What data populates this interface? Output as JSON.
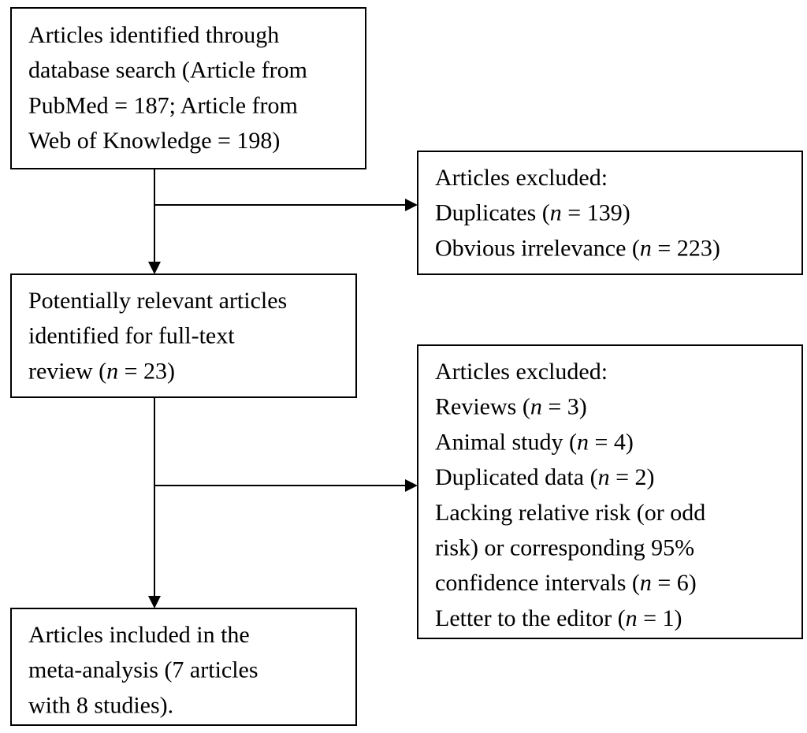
{
  "nodes": [
    {
      "lines": [
        [
          "Articles identified through"
        ],
        [
          "database search (Article from"
        ],
        [
          "PubMed = 187; Article from"
        ],
        [
          "Web of Knowledge = 198)"
        ]
      ]
    },
    {
      "lines": [
        [
          "Articles excluded:"
        ],
        [
          "Duplicates (",
          "n",
          " = 139)"
        ],
        [
          "Obvious irrelevance (",
          "n",
          " = 223)"
        ]
      ]
    },
    {
      "lines": [
        [
          "Potentially relevant articles"
        ],
        [
          "identified for full-text"
        ],
        [
          "review (",
          "n",
          " = 23)"
        ]
      ]
    },
    {
      "lines": [
        [
          "Articles excluded:"
        ],
        [
          "Reviews (",
          "n",
          " = 3)"
        ],
        [
          "Animal study (",
          "n",
          " = 4)"
        ],
        [
          "Duplicated data (",
          "n",
          " = 2)"
        ],
        [
          "Lacking relative risk (or odd"
        ],
        [
          "risk) or corresponding 95%"
        ],
        [
          "confidence intervals (",
          "n",
          " = 6)"
        ],
        [
          "Letter to the editor (",
          "n",
          " = 1)"
        ]
      ]
    },
    {
      "lines": [
        [
          "Articles included in the"
        ],
        [
          "meta-analysis (7 articles"
        ],
        [
          "with 8 studies)."
        ]
      ]
    }
  ]
}
